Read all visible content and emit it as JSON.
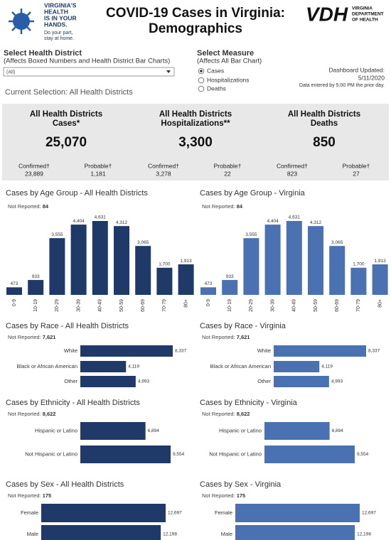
{
  "header": {
    "logo_lines": [
      "VIRGINIA'S",
      "HEALTH",
      "IS IN YOUR",
      "HANDS."
    ],
    "logo_tagline": [
      "Do your part,",
      "stay at home."
    ],
    "title_lines": [
      "COVID-19 Cases in Virginia:",
      "Demographics"
    ],
    "vdh": "VDH",
    "vdh_lines": [
      "VIRGINIA",
      "DEPARTMENT",
      "OF HEALTH"
    ]
  },
  "controls": {
    "district_label": "Select Health District",
    "district_note": "(Affects Boxed Numbers and Health District Bar Charts)",
    "district_value": "(All)",
    "measure_label": "Select Measure",
    "measure_note": "(Affects All Bar Chart)",
    "measure_options": [
      "Cases",
      "Hospitalizations",
      "Deaths"
    ],
    "updated_label": "Dashboard Updated:",
    "updated_date": "5/11/2020",
    "updated_note": "Data entered by 5:00 PM the prior day.",
    "current_selection": "Current Selection: All Health Districts"
  },
  "summary": [
    {
      "title": [
        "All Health Districts",
        "Cases*"
      ],
      "total": "25,070",
      "confirmed_label": "Confirmed†",
      "confirmed": "23,889",
      "probable_label": "Probable†",
      "probable": "1,181"
    },
    {
      "title": [
        "All Health Districts",
        "Hospitalizations**"
      ],
      "total": "3,300",
      "confirmed_label": "Confirmed†",
      "confirmed": "3,278",
      "probable_label": "Probable†",
      "probable": "22"
    },
    {
      "title": [
        "All Health Districts",
        "Deaths"
      ],
      "total": "850",
      "confirmed_label": "Confirmed†",
      "confirmed": "823",
      "probable_label": "Probable†",
      "probable": "27"
    }
  ],
  "chart_data": [
    {
      "type": "bar",
      "title": "Cases by Age Group - All Health Districts",
      "not_reported_label": "Not Reported:",
      "not_reported": 84,
      "color": "#1f3a68",
      "categories": [
        "0-9",
        "10-19",
        "20-29",
        "30-39",
        "40-49",
        "50-59",
        "60-69",
        "70-79",
        "80+"
      ],
      "values": [
        473,
        933,
        3555,
        4404,
        4631,
        4312,
        3065,
        1700,
        1913
      ],
      "value_labels": [
        "473",
        "933",
        "3,555",
        "4,404",
        "4,631",
        "4,312",
        "3,065",
        "1,700",
        "1,913"
      ]
    },
    {
      "type": "bar",
      "title": "Cases by Age Group - Virginia",
      "not_reported_label": "Not Reported:",
      "not_reported": 84,
      "color": "#4a72b3",
      "categories": [
        "0-9",
        "10-19",
        "20-29",
        "30-39",
        "40-49",
        "50-59",
        "60-69",
        "70-79",
        "80+"
      ],
      "values": [
        473,
        933,
        3555,
        4404,
        4631,
        4312,
        3065,
        1700,
        1913
      ],
      "value_labels": [
        "473",
        "933",
        "3,555",
        "4,404",
        "4,631",
        "4,312",
        "3,065",
        "1,700",
        "1,913"
      ]
    },
    {
      "type": "barh",
      "title": "Cases by Race - All Health Districts",
      "not_reported_label": "Not Reported:",
      "not_reported": {
        "value": 7621,
        "label": "7,621"
      },
      "color": "#1f3a68",
      "categories": [
        "White",
        "Black or African American",
        "Other"
      ],
      "values": [
        8337,
        4119,
        4993
      ],
      "value_labels": [
        "8,337",
        "4,119",
        "4,993"
      ]
    },
    {
      "type": "barh",
      "title": "Cases by Race - Virginia",
      "not_reported_label": "Not Reported:",
      "not_reported": {
        "value": 7621,
        "label": "7,621"
      },
      "color": "#4a72b3",
      "categories": [
        "White",
        "Black or African American",
        "Other"
      ],
      "values": [
        8337,
        4119,
        4993
      ],
      "value_labels": [
        "8,337",
        "4,119",
        "4,993"
      ]
    },
    {
      "type": "barh",
      "title": "Cases by Ethnicity - All Health Districts",
      "not_reported_label": "Not Reported:",
      "not_reported": {
        "value": 8622,
        "label": "8,622"
      },
      "color": "#1f3a68",
      "categories": [
        "Hispanic or Latino",
        "Not Hispanic or Latino"
      ],
      "values": [
        6894,
        9554
      ],
      "value_labels": [
        "6,894",
        "9,554"
      ]
    },
    {
      "type": "barh",
      "title": "Cases by Ethnicity - Virginia",
      "not_reported_label": "Not Reported:",
      "not_reported": {
        "value": 8622,
        "label": "8,622"
      },
      "color": "#4a72b3",
      "categories": [
        "Hispanic or Latino",
        "Not Hispanic or Latino"
      ],
      "values": [
        6894,
        9554
      ],
      "value_labels": [
        "6,894",
        "9,554"
      ]
    },
    {
      "type": "barh",
      "title": "Cases by Sex - All Health Districts",
      "not_reported_label": "Not Reported:",
      "not_reported": 175,
      "color": "#1f3a68",
      "categories": [
        "Female",
        "Male"
      ],
      "values": [
        12697,
        12198
      ],
      "value_labels": [
        "12,697",
        "12,198"
      ]
    },
    {
      "type": "barh",
      "title": "Cases by Sex - Virginia",
      "not_reported_label": "Not Reported:",
      "not_reported": 175,
      "color": "#4a72b3",
      "categories": [
        "Female",
        "Male"
      ],
      "values": [
        12697,
        12198
      ],
      "value_labels": [
        "12,697",
        "12,198"
      ]
    }
  ]
}
